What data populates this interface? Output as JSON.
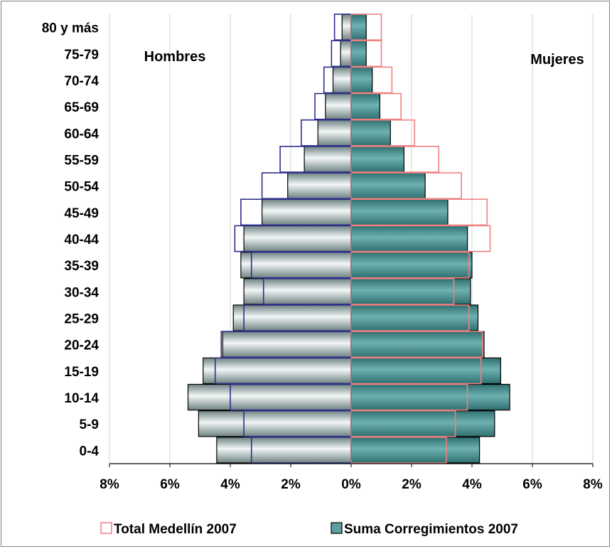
{
  "chart_data": {
    "type": "bar",
    "orientation": "horizontal",
    "layout": "population-pyramid",
    "categories": [
      "0-4",
      "5-9",
      "10-14",
      "15-19",
      "20-24",
      "25-29",
      "30-34",
      "35-39",
      "40-44",
      "45-49",
      "50-54",
      "55-59",
      "60-64",
      "65-69",
      "70-74",
      "75-79",
      "80 y más"
    ],
    "series": [
      {
        "name": "Suma Corregimientos 2007",
        "style": "filled",
        "color": "#5f9ea0",
        "men": [
          4.45,
          5.05,
          5.4,
          4.9,
          4.25,
          3.9,
          3.55,
          3.65,
          3.55,
          2.95,
          2.1,
          1.55,
          1.1,
          0.85,
          0.6,
          0.35,
          0.3
        ],
        "women": [
          4.25,
          4.75,
          5.25,
          4.95,
          4.4,
          4.2,
          3.95,
          4.0,
          3.85,
          3.2,
          2.45,
          1.75,
          1.3,
          0.95,
          0.7,
          0.5,
          0.5
        ]
      },
      {
        "name": "Total Medellín 2007",
        "style": "outline",
        "color_men": "#2e2e8a",
        "color_women": "#f08080",
        "men": [
          3.3,
          3.55,
          4.0,
          4.5,
          4.3,
          3.55,
          2.9,
          3.3,
          3.85,
          3.65,
          2.95,
          2.35,
          1.65,
          1.2,
          0.9,
          0.65,
          0.55
        ],
        "women": [
          3.15,
          3.45,
          3.85,
          4.3,
          4.35,
          3.9,
          3.4,
          3.9,
          4.6,
          4.5,
          3.65,
          2.9,
          2.1,
          1.65,
          1.35,
          1.0,
          1.0
        ]
      }
    ],
    "xlim": [
      -8,
      8
    ],
    "x_ticks": [
      "8%",
      "6%",
      "4%",
      "2%",
      "0%",
      "2%",
      "4%",
      "6%",
      "8%"
    ],
    "annotations": {
      "left": "Hombres",
      "right": "Mujeres"
    },
    "legend": [
      {
        "label": "Total Medellín 2007",
        "swatch": "outline"
      },
      {
        "label": "Suma Corregimientos 2007",
        "swatch": "filled"
      }
    ],
    "legend_position": "bottom",
    "grid": "vertical",
    "colors": {
      "grid": "#d0d0d0",
      "axis": "#000000"
    }
  }
}
